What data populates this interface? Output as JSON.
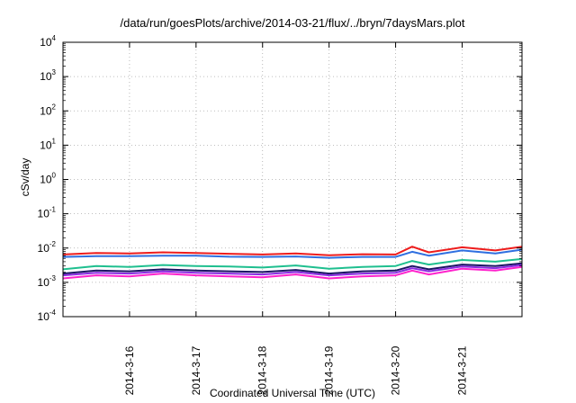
{
  "chart_data": {
    "type": "line",
    "title": "/data/run/goesPlots/archive/2014-03-21/flux/../bryn/7daysMars.plot",
    "xlabel": "Coordinated Universal Time (UTC)",
    "ylabel": "cSv/day",
    "yscale": "log",
    "ylim": [
      0.0001,
      10000
    ],
    "y_ticks": [
      {
        "base": "10",
        "exp": "-4"
      },
      {
        "base": "10",
        "exp": "-3"
      },
      {
        "base": "10",
        "exp": "-2"
      },
      {
        "base": "10",
        "exp": "-1"
      },
      {
        "base": "10",
        "exp": "0"
      },
      {
        "base": "10",
        "exp": "1"
      },
      {
        "base": "10",
        "exp": "2"
      },
      {
        "base": "10",
        "exp": "3"
      },
      {
        "base": "10",
        "exp": "4"
      }
    ],
    "xlim": [
      0,
      6.9
    ],
    "x_tick_positions": [
      1,
      2,
      3,
      4,
      5,
      6
    ],
    "x_tick_labels": [
      "2014-3-16",
      "2014-3-17",
      "2014-3-18",
      "2014-3-19",
      "2014-3-20",
      "2014-3-21"
    ],
    "grid": true,
    "series": [
      {
        "name": "red",
        "color": "#ee1c1c",
        "x": [
          0,
          0.5,
          1,
          1.5,
          2,
          2.5,
          3,
          3.5,
          4,
          4.5,
          5,
          5.25,
          5.5,
          6,
          6.5,
          6.9
        ],
        "values": [
          0.0065,
          0.0072,
          0.007,
          0.0075,
          0.0072,
          0.0068,
          0.0065,
          0.007,
          0.0062,
          0.0066,
          0.0065,
          0.011,
          0.0075,
          0.0105,
          0.0085,
          0.011
        ]
      },
      {
        "name": "blue",
        "color": "#2f6fe0",
        "x": [
          0,
          0.5,
          1,
          1.5,
          2,
          2.5,
          3,
          3.5,
          4,
          4.5,
          5,
          5.25,
          5.5,
          6,
          6.5,
          6.9
        ],
        "values": [
          0.0055,
          0.0058,
          0.0058,
          0.006,
          0.006,
          0.0056,
          0.0055,
          0.0057,
          0.0052,
          0.0055,
          0.0055,
          0.0078,
          0.006,
          0.0085,
          0.007,
          0.009
        ]
      },
      {
        "name": "green",
        "color": "#1fbf8f",
        "x": [
          0,
          0.5,
          1,
          1.5,
          2,
          2.5,
          3,
          3.5,
          4,
          4.5,
          5,
          5.25,
          5.5,
          6,
          6.5,
          6.9
        ],
        "values": [
          0.0024,
          0.003,
          0.0028,
          0.0032,
          0.003,
          0.0029,
          0.0027,
          0.0031,
          0.0025,
          0.0028,
          0.003,
          0.0042,
          0.0033,
          0.0045,
          0.004,
          0.0048
        ]
      },
      {
        "name": "dark navy",
        "color": "#1b1464",
        "x": [
          0,
          0.5,
          1,
          1.5,
          2,
          2.5,
          3,
          3.5,
          4,
          4.5,
          5,
          5.25,
          5.5,
          6,
          6.5,
          6.9
        ],
        "values": [
          0.0018,
          0.0022,
          0.0021,
          0.0024,
          0.0022,
          0.0021,
          0.002,
          0.0023,
          0.0018,
          0.0021,
          0.0022,
          0.003,
          0.0024,
          0.0033,
          0.003,
          0.0036
        ]
      },
      {
        "name": "purple",
        "color": "#8a2be2",
        "x": [
          0,
          0.5,
          1,
          1.5,
          2,
          2.5,
          3,
          3.5,
          4,
          4.5,
          5,
          5.25,
          5.5,
          6,
          6.5,
          6.9
        ],
        "values": [
          0.0016,
          0.0019,
          0.0018,
          0.0021,
          0.0019,
          0.0018,
          0.0017,
          0.002,
          0.0016,
          0.0018,
          0.0019,
          0.0026,
          0.0021,
          0.0029,
          0.0026,
          0.0032
        ]
      },
      {
        "name": "magenta",
        "color": "#ff22cc",
        "x": [
          0,
          0.5,
          1,
          1.5,
          2,
          2.5,
          3,
          3.5,
          4,
          4.5,
          5,
          5.25,
          5.5,
          6,
          6.5,
          6.9
        ],
        "values": [
          0.0013,
          0.0016,
          0.0015,
          0.0018,
          0.0016,
          0.0015,
          0.0014,
          0.0017,
          0.0013,
          0.0015,
          0.0016,
          0.0022,
          0.0017,
          0.0025,
          0.0022,
          0.0028
        ]
      }
    ]
  }
}
